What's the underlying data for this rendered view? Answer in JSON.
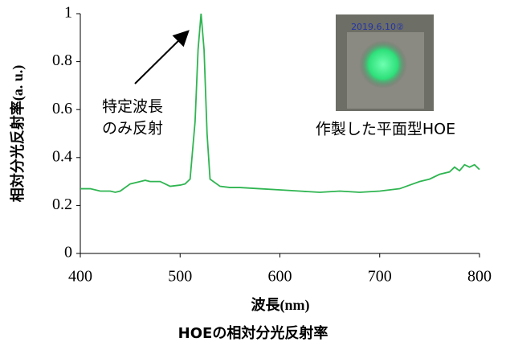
{
  "chart_data": {
    "type": "line",
    "title": "HOEの相対分光反射率",
    "xlabel": "波長(nm)",
    "ylabel": "相対分光反射率(a. u.)",
    "annotation": [
      "特定波長",
      "のみ反射"
    ],
    "photo_caption": "作製した平面型HOE",
    "photo_label": "2019.6.10②",
    "color": "#2fb551",
    "x": [
      400,
      410,
      420,
      430,
      435,
      440,
      450,
      460,
      465,
      470,
      480,
      485,
      490,
      500,
      505,
      510,
      515,
      518,
      521,
      524,
      527,
      530,
      540,
      550,
      560,
      580,
      600,
      620,
      640,
      660,
      680,
      700,
      710,
      720,
      730,
      740,
      750,
      760,
      770,
      775,
      780,
      785,
      790,
      795,
      800
    ],
    "values": [
      0.27,
      0.27,
      0.26,
      0.26,
      0.255,
      0.26,
      0.29,
      0.3,
      0.305,
      0.3,
      0.3,
      0.29,
      0.28,
      0.285,
      0.29,
      0.31,
      0.55,
      0.85,
      1.0,
      0.85,
      0.5,
      0.31,
      0.28,
      0.275,
      0.275,
      0.27,
      0.265,
      0.26,
      0.255,
      0.26,
      0.255,
      0.26,
      0.265,
      0.27,
      0.285,
      0.3,
      0.31,
      0.33,
      0.34,
      0.36,
      0.345,
      0.37,
      0.36,
      0.37,
      0.35
    ],
    "xlim": [
      400,
      800
    ],
    "xticks": [
      400,
      500,
      600,
      700,
      800
    ],
    "ylim": [
      0,
      1
    ],
    "yticks": [
      0,
      0.2,
      0.4,
      0.6,
      0.8,
      1
    ]
  }
}
